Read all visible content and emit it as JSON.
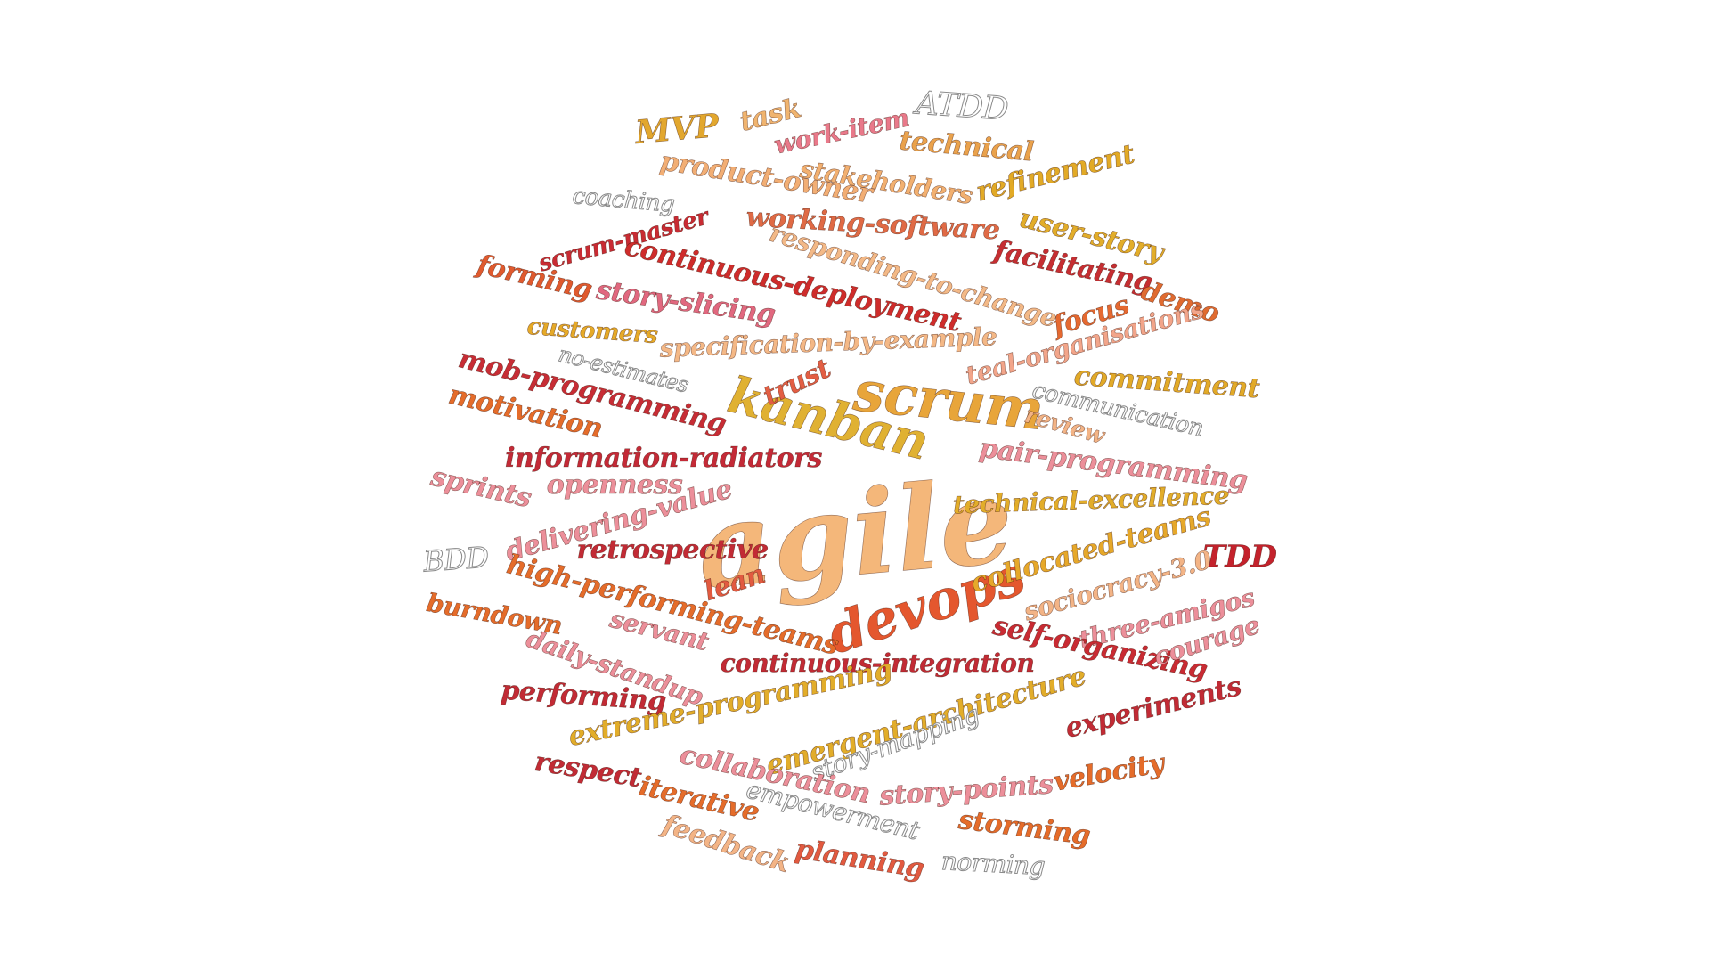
{
  "word_cloud": {
    "words": [
      {
        "text": "agile",
        "color": "#f4b77a"
      },
      {
        "text": "scrum",
        "color": "#e8a53a"
      },
      {
        "text": "kanban",
        "color": "#e0b132"
      },
      {
        "text": "devops",
        "color": "#e4572e"
      },
      {
        "text": "MVP",
        "color": "#e2a72e"
      },
      {
        "text": "task",
        "color": "#f0b46f"
      },
      {
        "text": "work-item",
        "color": "#e9798a"
      },
      {
        "text": "ATDD",
        "color": "#ffffff",
        "style": "outline"
      },
      {
        "text": "technical",
        "color": "#eaa24c"
      },
      {
        "text": "stakeholders",
        "color": "#f2b070"
      },
      {
        "text": "product-owner",
        "color": "#f2ae74"
      },
      {
        "text": "refinement",
        "color": "#e2aa26"
      },
      {
        "text": "coaching",
        "color": "#ffffff",
        "style": "outline"
      },
      {
        "text": "working-software",
        "color": "#e06a45"
      },
      {
        "text": "scrum-master",
        "color": "#c92b33"
      },
      {
        "text": "user-story",
        "color": "#e2ad2a"
      },
      {
        "text": "responding-to-change",
        "color": "#f3b987"
      },
      {
        "text": "continuous-deployment",
        "color": "#cf2c2b"
      },
      {
        "text": "facilitating",
        "color": "#c62e32"
      },
      {
        "text": "forming",
        "color": "#e05a2e"
      },
      {
        "text": "story-slicing",
        "color": "#e1687f"
      },
      {
        "text": "demo",
        "color": "#e06b30"
      },
      {
        "text": "focus",
        "color": "#e56930"
      },
      {
        "text": "customers",
        "color": "#e6aa28"
      },
      {
        "text": "specification-by-example",
        "color": "#f4b886"
      },
      {
        "text": "teal-organisations",
        "color": "#f2a58a"
      },
      {
        "text": "no-estimates",
        "color": "#ffffff",
        "style": "outline"
      },
      {
        "text": "trust",
        "color": "#e35e43"
      },
      {
        "text": "commitment",
        "color": "#e2aa28"
      },
      {
        "text": "mob-programming",
        "color": "#c72d35"
      },
      {
        "text": "communication",
        "color": "#ffffff",
        "style": "outline"
      },
      {
        "text": "motivation",
        "color": "#e56c2a"
      },
      {
        "text": "review",
        "color": "#f3b486"
      },
      {
        "text": "information-radiators",
        "color": "#c42a37"
      },
      {
        "text": "pair-programming",
        "color": "#ec8f9a"
      },
      {
        "text": "sprints",
        "color": "#ec8f9a"
      },
      {
        "text": "openness",
        "color": "#ec8f9a"
      },
      {
        "text": "delivering-value",
        "color": "#ec8f9a"
      },
      {
        "text": "technical-excellence",
        "color": "#e2ad2a"
      },
      {
        "text": "BDD",
        "color": "#ffffff",
        "style": "outline"
      },
      {
        "text": "retrospective",
        "color": "#c22b35"
      },
      {
        "text": "collocated-teams",
        "color": "#e6a82a"
      },
      {
        "text": "TDD",
        "color": "#c4222c"
      },
      {
        "text": "high-performing-teams",
        "color": "#e56c2a"
      },
      {
        "text": "lean",
        "color": "#e25a40"
      },
      {
        "text": "sociocracy-3.0",
        "color": "#f3b486"
      },
      {
        "text": "burndown",
        "color": "#e56c2a"
      },
      {
        "text": "three-amigos",
        "color": "#ec8f9a"
      },
      {
        "text": "servant",
        "color": "#ec8f9a"
      },
      {
        "text": "self-organizing",
        "color": "#c92b33"
      },
      {
        "text": "courage",
        "color": "#ec8f9a"
      },
      {
        "text": "daily-standup",
        "color": "#ec8f9a"
      },
      {
        "text": "continuous-integration",
        "color": "#c22b35"
      },
      {
        "text": "performing",
        "color": "#c22b35"
      },
      {
        "text": "extreme-programming",
        "color": "#e2ad2a"
      },
      {
        "text": "emergent-architecture",
        "color": "#e2ad2a"
      },
      {
        "text": "experiments",
        "color": "#c22b35"
      },
      {
        "text": "story-mapping",
        "color": "#ffffff",
        "style": "outline"
      },
      {
        "text": "collaboration",
        "color": "#ec8f9a"
      },
      {
        "text": "respect",
        "color": "#c22b35"
      },
      {
        "text": "velocity",
        "color": "#e56c2a"
      },
      {
        "text": "story-points",
        "color": "#ec8f9a"
      },
      {
        "text": "iterative",
        "color": "#e56c2a"
      },
      {
        "text": "empowerment",
        "color": "#ffffff",
        "style": "outline"
      },
      {
        "text": "storming",
        "color": "#e56c2a"
      },
      {
        "text": "feedback",
        "color": "#f3b486"
      },
      {
        "text": "planning",
        "color": "#e25a40"
      },
      {
        "text": "norming",
        "color": "#ffffff",
        "style": "outline"
      }
    ]
  }
}
